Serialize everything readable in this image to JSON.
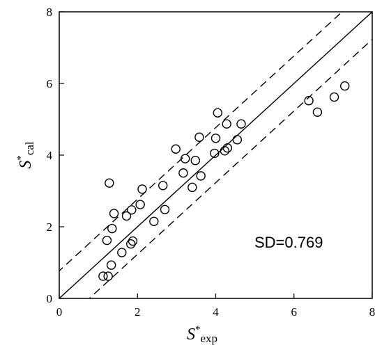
{
  "chart_data": {
    "type": "scatter",
    "xlabel": {
      "main": "S",
      "sup": "*",
      "sub": "exp"
    },
    "ylabel": {
      "main": "S",
      "sup": "*",
      "sub": "cal"
    },
    "xlim": [
      0,
      8
    ],
    "ylim": [
      0,
      8
    ],
    "xticks": [
      "0",
      "2",
      "4",
      "6",
      "8"
    ],
    "yticks": [
      "0",
      "2",
      "4",
      "6",
      "8"
    ],
    "grid": false,
    "annotation": "SD=0.769",
    "reference_lines": [
      {
        "style": "solid",
        "offset": 0
      },
      {
        "style": "dashed",
        "offset": 0.769
      },
      {
        "style": "dashed",
        "offset": -0.769
      }
    ],
    "points": [
      [
        1.12,
        0.62
      ],
      [
        1.25,
        0.62
      ],
      [
        1.33,
        0.93
      ],
      [
        1.22,
        1.62
      ],
      [
        1.35,
        1.95
      ],
      [
        1.4,
        2.37
      ],
      [
        1.28,
        3.22
      ],
      [
        1.6,
        1.28
      ],
      [
        1.83,
        1.52
      ],
      [
        1.88,
        1.6
      ],
      [
        1.72,
        2.3
      ],
      [
        1.85,
        2.47
      ],
      [
        2.07,
        2.62
      ],
      [
        2.12,
        3.05
      ],
      [
        2.42,
        2.15
      ],
      [
        2.7,
        2.48
      ],
      [
        2.65,
        3.15
      ],
      [
        2.98,
        4.17
      ],
      [
        3.17,
        3.5
      ],
      [
        3.22,
        3.9
      ],
      [
        3.4,
        3.1
      ],
      [
        3.48,
        3.85
      ],
      [
        3.62,
        3.42
      ],
      [
        3.58,
        4.5
      ],
      [
        3.97,
        4.05
      ],
      [
        4.0,
        4.47
      ],
      [
        4.05,
        5.18
      ],
      [
        4.23,
        4.12
      ],
      [
        4.3,
        4.2
      ],
      [
        4.28,
        4.87
      ],
      [
        4.55,
        4.43
      ],
      [
        4.65,
        4.87
      ],
      [
        6.38,
        5.52
      ],
      [
        6.6,
        5.2
      ],
      [
        7.03,
        5.62
      ],
      [
        7.3,
        5.93
      ]
    ]
  }
}
